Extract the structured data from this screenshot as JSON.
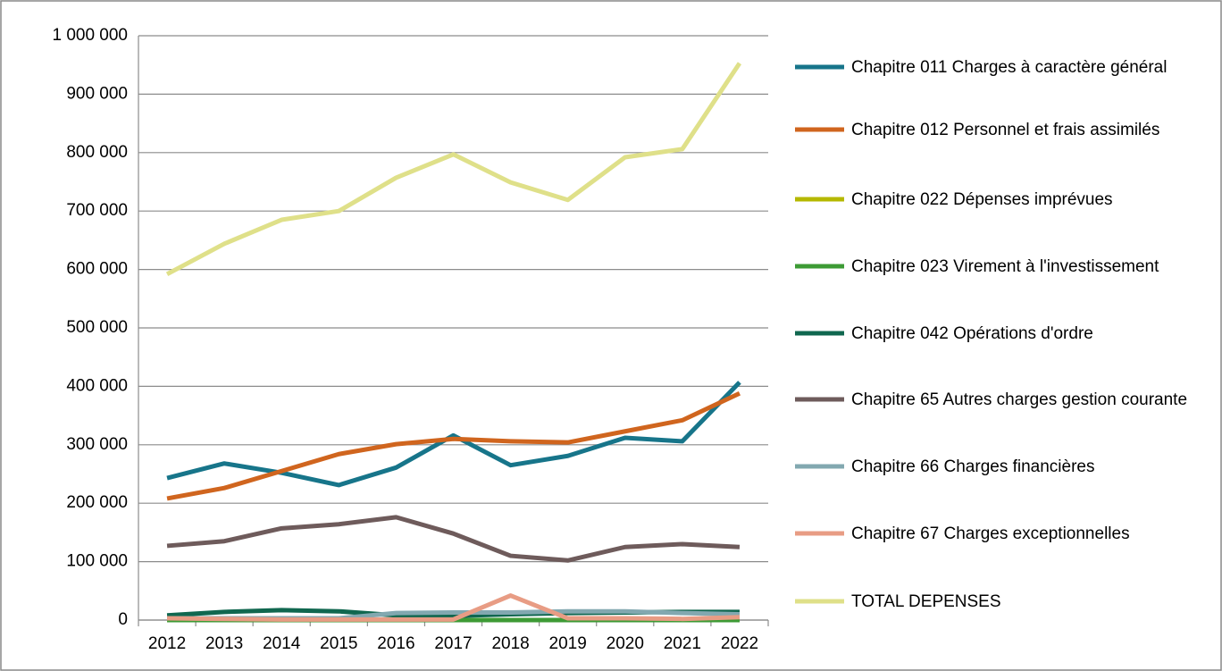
{
  "chart_data": {
    "type": "line",
    "categories": [
      "2012",
      "2013",
      "2014",
      "2015",
      "2016",
      "2017",
      "2018",
      "2019",
      "2020",
      "2021",
      "2022"
    ],
    "series": [
      {
        "name": "Chapitre 011 Charges à caractère général",
        "color": "#17758a",
        "values": [
          243000,
          268000,
          252000,
          231000,
          261000,
          316000,
          265000,
          281000,
          312000,
          306000,
          407000
        ]
      },
      {
        "name": "Chapitre 012 Personnel et frais assimilés",
        "color": "#d0651e",
        "values": [
          208000,
          226000,
          255000,
          284000,
          301000,
          310000,
          306000,
          304000,
          323000,
          342000,
          388000
        ]
      },
      {
        "name": "Chapitre 022 Dépenses imprévues",
        "color": "#b5b800",
        "values": [
          0,
          0,
          0,
          0,
          0,
          0,
          0,
          0,
          0,
          0,
          0
        ]
      },
      {
        "name": "Chapitre 023 Virement à l'investissement",
        "color": "#3d9b35",
        "values": [
          0,
          0,
          0,
          0,
          0,
          0,
          0,
          0,
          0,
          0,
          0
        ]
      },
      {
        "name": "Chapitre 042 Opérations d'ordre",
        "color": "#10674f",
        "values": [
          8000,
          14000,
          17000,
          15000,
          8000,
          7000,
          10000,
          12000,
          13000,
          14000,
          14000
        ]
      },
      {
        "name": "Chapitre 65 Autres charges gestion courante",
        "color": "#6e5b5b",
        "values": [
          127000,
          135000,
          157000,
          164000,
          176000,
          148000,
          110000,
          102000,
          125000,
          130000,
          125000
        ]
      },
      {
        "name": "Chapitre 66 Charges financières",
        "color": "#82a8b0",
        "values": [
          3000,
          3000,
          3000,
          3000,
          12000,
          13000,
          13000,
          15000,
          15000,
          12000,
          10000
        ]
      },
      {
        "name": "Chapitre 67 Charges exceptionnelles",
        "color": "#e89c84",
        "values": [
          3000,
          2000,
          1000,
          1000,
          1000,
          1000,
          42000,
          3000,
          3000,
          2000,
          5000
        ]
      },
      {
        "name": "TOTAL DEPENSES",
        "color": "#dfe089",
        "values": [
          592000,
          644000,
          685000,
          700000,
          757000,
          797000,
          749000,
          719000,
          792000,
          806000,
          953000
        ]
      }
    ],
    "ylim": [
      0,
      1000000
    ],
    "yticks": [
      0,
      {
        "value": 100000,
        "label": "100 000"
      },
      {
        "value": 200000,
        "label": "200 000"
      },
      {
        "value": 300000,
        "label": "300 000"
      },
      {
        "value": 400000,
        "label": "400 000"
      },
      {
        "value": 500000,
        "label": "500 000"
      },
      {
        "value": 600000,
        "label": "600 000"
      },
      {
        "value": 700000,
        "label": "700 000"
      },
      {
        "value": 800000,
        "label": "800 000"
      },
      {
        "value": 900000,
        "label": "900 000"
      },
      {
        "value": 1000000,
        "label": "1 000 000"
      }
    ],
    "grid": true,
    "legend": "right"
  }
}
